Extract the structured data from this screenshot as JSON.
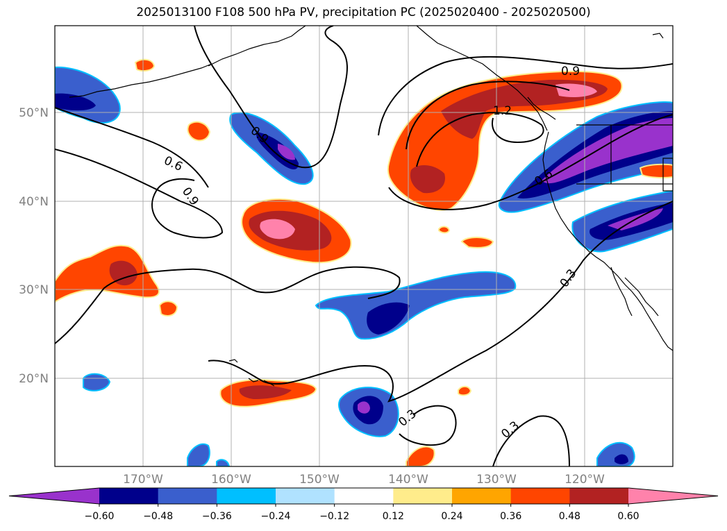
{
  "title": "2025013100 F108 500 hPa PV, precipitation PC (2025020400 - 2025020500)",
  "map": {
    "extent": {
      "lon_min": -180,
      "lon_max": -110,
      "lat_min": 10,
      "lat_max": 60
    },
    "lat_labels": [
      "50°N",
      "40°N",
      "30°N",
      "20°N"
    ],
    "lon_labels": [
      "170°W",
      "160°W",
      "150°W",
      "140°W",
      "130°W",
      "120°W"
    ],
    "contour_labels": [
      "0.6",
      "0.9",
      "0.9",
      "1.2",
      "0.9",
      "0.6",
      "0.3",
      "0.3",
      "0.3"
    ]
  },
  "colorbar": {
    "ticks": [
      "−0.60",
      "−0.48",
      "−0.36",
      "−0.24",
      "−0.12",
      "0.12",
      "0.24",
      "0.36",
      "0.48",
      "0.60"
    ],
    "colors": [
      "#9932cc",
      "#00008b",
      "#3a5fcd",
      "#00bfff",
      "#b0e2ff",
      "#ffffff",
      "#ffec8b",
      "#ffa500",
      "#ff4500",
      "#b22222",
      "#ff82ab"
    ]
  }
}
